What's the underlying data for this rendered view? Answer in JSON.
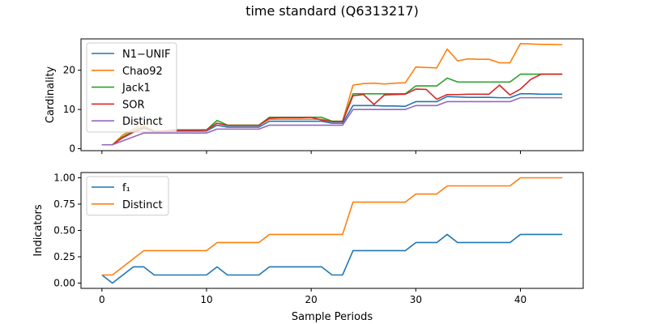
{
  "figure": {
    "title": "time standard (Q6313217)"
  },
  "chart_data": [
    {
      "type": "line",
      "ylabel": "Cardinality",
      "xlabel": "",
      "xlim": [
        -2,
        46
      ],
      "ylim": [
        -0.5,
        28
      ],
      "xticks": [
        0,
        10,
        20,
        30,
        40
      ],
      "yticks": [
        0,
        10,
        20
      ],
      "show_xticklabels": false,
      "legend": "upper-left",
      "grid": false,
      "x": [
        0,
        1,
        2,
        3,
        4,
        5,
        6,
        7,
        8,
        9,
        10,
        11,
        12,
        13,
        14,
        15,
        16,
        17,
        18,
        19,
        20,
        21,
        22,
        23,
        24,
        25,
        26,
        27,
        28,
        29,
        30,
        31,
        32,
        33,
        34,
        35,
        36,
        37,
        38,
        39,
        40,
        41,
        42,
        43,
        44
      ],
      "series": [
        {
          "name": "N1−UNIF",
          "color": "#1f77b4",
          "values": [
            1,
            1,
            3,
            4.5,
            5.5,
            4.3,
            4.3,
            4.5,
            4.5,
            4.5,
            4.5,
            6,
            5.5,
            5.5,
            5.5,
            5.5,
            7,
            7,
            7,
            7,
            7,
            7,
            6.5,
            6.5,
            11,
            11,
            11,
            10.9,
            10.9,
            10.8,
            12,
            12,
            12,
            13.3,
            13.2,
            13.1,
            13.1,
            13.1,
            13,
            13,
            14,
            14,
            13.9,
            13.9,
            13.9
          ]
        },
        {
          "name": "Chao92",
          "color": "#ff7f0e",
          "values": [
            1,
            1,
            3.5,
            5,
            6,
            4.5,
            4.5,
            4.7,
            4.7,
            4.7,
            4.7,
            6.5,
            6,
            6,
            6,
            6,
            7.5,
            7.5,
            7.5,
            7.5,
            7.5,
            7.5,
            7,
            7,
            16.2,
            16.6,
            16.7,
            16.5,
            16.7,
            16.8,
            20.8,
            20.7,
            20.6,
            25.4,
            22.4,
            22.9,
            22.8,
            22.8,
            21.9,
            21.9,
            26.8,
            26.7,
            26.6,
            26.6,
            26.5
          ]
        },
        {
          "name": "Jack1",
          "color": "#2ca02c",
          "values": [
            1,
            1,
            3,
            4.5,
            5.5,
            4.5,
            4.5,
            4.8,
            4.8,
            4.8,
            4.8,
            7.2,
            6,
            6,
            6,
            6,
            8,
            8,
            8,
            8,
            8,
            8,
            7,
            7,
            14,
            14,
            14,
            14,
            14,
            14,
            16,
            16,
            16,
            18,
            17,
            17,
            17,
            17,
            17,
            17,
            19,
            19,
            19,
            19,
            19
          ]
        },
        {
          "name": "SOR",
          "color": "#d62728",
          "values": [
            1,
            1,
            2.8,
            4.2,
            5.2,
            4.4,
            4.5,
            4.7,
            4.7,
            4.7,
            4.8,
            6.5,
            5.9,
            5.9,
            5.9,
            5.9,
            7.8,
            7.9,
            7.9,
            7.9,
            8,
            7.3,
            6.9,
            6.9,
            13.5,
            13.8,
            11.3,
            13.7,
            13.8,
            13.9,
            15.2,
            15.1,
            12.6,
            13.8,
            13.8,
            13.9,
            13.9,
            13.9,
            16.2,
            13.7,
            15.2,
            17.7,
            19,
            19,
            19
          ]
        },
        {
          "name": "Distinct",
          "color": "#9467bd",
          "values": [
            1,
            1,
            2,
            3,
            4,
            4,
            4,
            4,
            4,
            4,
            4,
            5,
            5,
            5,
            5,
            5,
            6,
            6,
            6,
            6,
            6,
            6,
            6,
            6,
            10,
            10,
            10,
            10,
            10,
            10,
            11,
            11,
            11,
            12,
            12,
            12,
            12,
            12,
            12,
            12,
            13,
            13,
            13,
            13,
            13
          ]
        }
      ]
    },
    {
      "type": "line",
      "ylabel": "Indicators",
      "xlabel": "Sample Periods",
      "xlim": [
        -2,
        46
      ],
      "ylim": [
        -0.05,
        1.05
      ],
      "xticks": [
        0,
        10,
        20,
        30,
        40
      ],
      "yticks": [
        0.0,
        0.25,
        0.5,
        0.75,
        1.0
      ],
      "ytick_labels": [
        "0.00",
        "0.25",
        "0.50",
        "0.75",
        "1.00"
      ],
      "show_xticklabels": true,
      "legend": "upper-left",
      "grid": false,
      "x": [
        0,
        1,
        2,
        3,
        4,
        5,
        6,
        7,
        8,
        9,
        10,
        11,
        12,
        13,
        14,
        15,
        16,
        17,
        18,
        19,
        20,
        21,
        22,
        23,
        24,
        25,
        26,
        27,
        28,
        29,
        30,
        31,
        32,
        33,
        34,
        35,
        36,
        37,
        38,
        39,
        40,
        41,
        42,
        43,
        44
      ],
      "series": [
        {
          "name": "f1",
          "display": "f₁",
          "color": "#1f77b4",
          "values": [
            0.077,
            0,
            0.077,
            0.154,
            0.154,
            0.077,
            0.077,
            0.077,
            0.077,
            0.077,
            0.077,
            0.154,
            0.077,
            0.077,
            0.077,
            0.077,
            0.154,
            0.154,
            0.154,
            0.154,
            0.154,
            0.154,
            0.077,
            0.077,
            0.308,
            0.308,
            0.308,
            0.308,
            0.308,
            0.308,
            0.385,
            0.385,
            0.385,
            0.462,
            0.385,
            0.385,
            0.385,
            0.385,
            0.385,
            0.385,
            0.462,
            0.462,
            0.462,
            0.462,
            0.462
          ]
        },
        {
          "name": "Distinct",
          "display": "Distinct",
          "color": "#ff7f0e",
          "values": [
            0.077,
            0.077,
            0.154,
            0.231,
            0.308,
            0.308,
            0.308,
            0.308,
            0.308,
            0.308,
            0.308,
            0.385,
            0.385,
            0.385,
            0.385,
            0.385,
            0.462,
            0.462,
            0.462,
            0.462,
            0.462,
            0.462,
            0.462,
            0.462,
            0.769,
            0.769,
            0.769,
            0.769,
            0.769,
            0.769,
            0.846,
            0.846,
            0.846,
            0.923,
            0.923,
            0.923,
            0.923,
            0.923,
            0.923,
            0.923,
            1.0,
            1.0,
            1.0,
            1.0,
            1.0
          ]
        }
      ]
    }
  ]
}
